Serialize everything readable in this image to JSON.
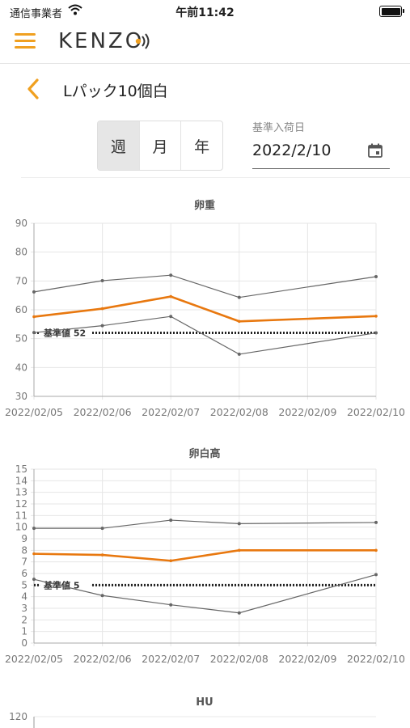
{
  "status": {
    "carrier": "通信事業者",
    "time": "午前11:42"
  },
  "app": {
    "logo_text": "KENZO"
  },
  "page": {
    "title": "Lパック10個白"
  },
  "period_tabs": [
    {
      "label": "週",
      "active": true
    },
    {
      "label": "月",
      "active": false
    },
    {
      "label": "年",
      "active": false
    }
  ],
  "date_picker": {
    "label": "基準入荷日",
    "value": "2022/2/10"
  },
  "colors": {
    "accent": "#e8780f",
    "menu": "#f0a020",
    "series_gray": "#666666"
  },
  "chart_data": [
    {
      "type": "line",
      "title": "卵重",
      "x": [
        "2022/02/05",
        "2022/02/06",
        "2022/02/07",
        "2022/02/08",
        "2022/02/09",
        "2022/02/10"
      ],
      "ylim": [
        30,
        90
      ],
      "yticks": [
        30,
        40,
        50,
        60,
        70,
        80,
        90
      ],
      "grid": true,
      "series": [
        {
          "role": "max",
          "color": "#666666",
          "values": [
            66.2,
            70.1,
            72.0,
            64.3,
            null,
            71.5
          ]
        },
        {
          "role": "avg",
          "color": "#e8780f",
          "values": [
            57.6,
            60.4,
            64.6,
            56.0,
            null,
            57.8
          ]
        },
        {
          "role": "min",
          "color": "#666666",
          "values": [
            52.1,
            54.5,
            57.7,
            44.6,
            null,
            52.0
          ]
        }
      ],
      "reference": {
        "value": 52,
        "label": "基準値 52"
      }
    },
    {
      "type": "line",
      "title": "卵白高",
      "x": [
        "2022/02/05",
        "2022/02/06",
        "2022/02/07",
        "2022/02/08",
        "2022/02/09",
        "2022/02/10"
      ],
      "ylim": [
        0,
        15
      ],
      "yticks": [
        0,
        1,
        2,
        3,
        4,
        5,
        6,
        7,
        8,
        9,
        10,
        11,
        12,
        13,
        14,
        15
      ],
      "grid": true,
      "series": [
        {
          "role": "max",
          "color": "#666666",
          "values": [
            9.9,
            9.9,
            10.6,
            10.3,
            null,
            10.4
          ]
        },
        {
          "role": "avg",
          "color": "#e8780f",
          "values": [
            7.7,
            7.6,
            7.1,
            8.0,
            null,
            8.0
          ]
        },
        {
          "role": "min",
          "color": "#666666",
          "values": [
            5.5,
            4.1,
            3.3,
            2.6,
            null,
            5.9
          ]
        }
      ],
      "reference": {
        "value": 5,
        "label": "基準値 5"
      }
    },
    {
      "type": "line",
      "title": "HU",
      "yticks": [
        120
      ],
      "grid": true
    }
  ]
}
